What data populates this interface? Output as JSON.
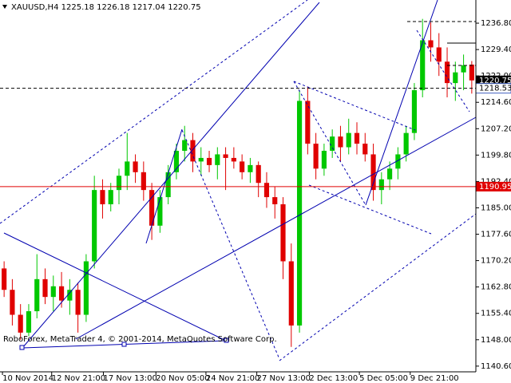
{
  "chart_data": {
    "type": "candlestick",
    "title": "XAUUSD,H4  1225.18 1226.18 1217.04 1220.75",
    "footer": "RoboForex, MetaTrader 4, © 2001-2014, MetaQuotes Software Corp.",
    "up_color": "#00c800",
    "down_color": "#e00000",
    "open": [
      1168,
      1162,
      1155,
      1150,
      1156,
      1165,
      1160,
      1163,
      1159,
      1162,
      1155,
      1170,
      1190,
      1186,
      1190,
      1194,
      1198,
      1195,
      1190,
      1180,
      1188,
      1195,
      1201,
      1204,
      1198,
      1199,
      1197,
      1200,
      1199,
      1198,
      1195,
      1197,
      1192,
      1188,
      1186,
      1170,
      1152,
      1215,
      1203,
      1196,
      1201,
      1205,
      1202,
      1206,
      1203,
      1200,
      1190,
      1193,
      1196,
      1200,
      1206,
      1218,
      1232,
      1230,
      1226,
      1220,
      1223,
      1225.18
    ],
    "high": [
      1170,
      1165,
      1158,
      1158,
      1172,
      1168,
      1166,
      1167,
      1165,
      1164,
      1172,
      1194,
      1193,
      1192,
      1196,
      1206,
      1200,
      1198,
      1192,
      1190,
      1197,
      1203,
      1208,
      1206,
      1202,
      1201,
      1202,
      1202,
      1202,
      1200,
      1199,
      1198,
      1195,
      1191,
      1188,
      1175,
      1218,
      1219,
      1206,
      1203,
      1207,
      1208,
      1210,
      1209,
      1206,
      1203,
      1195,
      1198,
      1202,
      1208,
      1220,
      1238,
      1237,
      1234,
      1230,
      1226,
      1228,
      1226.18
    ],
    "low": [
      1160,
      1152,
      1148,
      1149,
      1154,
      1158,
      1156,
      1157,
      1155,
      1150,
      1153,
      1168,
      1182,
      1184,
      1186,
      1190,
      1192,
      1187,
      1176,
      1178,
      1186,
      1193,
      1198,
      1195,
      1194,
      1195,
      1193,
      1190,
      1196,
      1193,
      1192,
      1188,
      1185,
      1182,
      1165,
      1146,
      1150,
      1200,
      1193,
      1194,
      1199,
      1198,
      1200,
      1200,
      1198,
      1187,
      1186,
      1190,
      1193,
      1198,
      1204,
      1216,
      1226,
      1222,
      1216,
      1215,
      1218,
      1217.04
    ],
    "close": [
      1162,
      1155,
      1150,
      1156,
      1165,
      1160,
      1163,
      1159,
      1162,
      1155,
      1170,
      1190,
      1186,
      1190,
      1194,
      1198,
      1195,
      1190,
      1180,
      1188,
      1195,
      1201,
      1204,
      1198,
      1199,
      1197,
      1200,
      1199,
      1198,
      1195,
      1197,
      1192,
      1188,
      1186,
      1170,
      1152,
      1215,
      1203,
      1196,
      1201,
      1205,
      1202,
      1206,
      1203,
      1200,
      1190,
      1193,
      1196,
      1200,
      1206,
      1218,
      1232,
      1230,
      1226,
      1220,
      1223,
      1225,
      1220.75
    ],
    "ylim": [
      1139,
      1243.3
    ],
    "yticks": [
      {
        "value": 1236.8,
        "label": "1236.80"
      },
      {
        "value": 1229.4,
        "label": "1229.40"
      },
      {
        "value": 1222,
        "label": "1222.00"
      },
      {
        "value": 1214.6,
        "label": "1214.60"
      },
      {
        "value": 1207.2,
        "label": "1207.20"
      },
      {
        "value": 1199.8,
        "label": "1199.80"
      },
      {
        "value": 1192.4,
        "label": "1192.40"
      },
      {
        "value": 1185,
        "label": "1185.00"
      },
      {
        "value": 1177.6,
        "label": "1177.60"
      },
      {
        "value": 1170.2,
        "label": "1170.20"
      },
      {
        "value": 1162.8,
        "label": "1162.80"
      },
      {
        "value": 1155.4,
        "label": "1155.40"
      },
      {
        "value": 1148,
        "label": "1148.00"
      },
      {
        "value": 1140.6,
        "label": "1140.60"
      }
    ],
    "xlim": [
      0,
      58
    ],
    "xticks": [
      {
        "value": 0.3,
        "label": "10 Nov 2014"
      },
      {
        "value": 6.3,
        "label": "12 Nov 21:00"
      },
      {
        "value": 12.6,
        "label": "17 Nov 13:00"
      },
      {
        "value": 19,
        "label": "20 Nov 05:00"
      },
      {
        "value": 25.1,
        "label": "24 Nov 21:00"
      },
      {
        "value": 31.3,
        "label": "27 Nov 13:00"
      },
      {
        "value": 37.7,
        "label": "2 Dec 13:00"
      },
      {
        "value": 43.8,
        "label": "5 Dec 05:00"
      },
      {
        "value": 50,
        "label": "9 Dec 21:00"
      }
    ],
    "price_lines": [
      {
        "value": 1220.75,
        "style": "label",
        "color": "#000000"
      },
      {
        "value": 1218.53,
        "style": "dashed",
        "color": "#000000"
      },
      {
        "value": 1190.95,
        "style": "solid",
        "color": "#e00000"
      }
    ]
  }
}
